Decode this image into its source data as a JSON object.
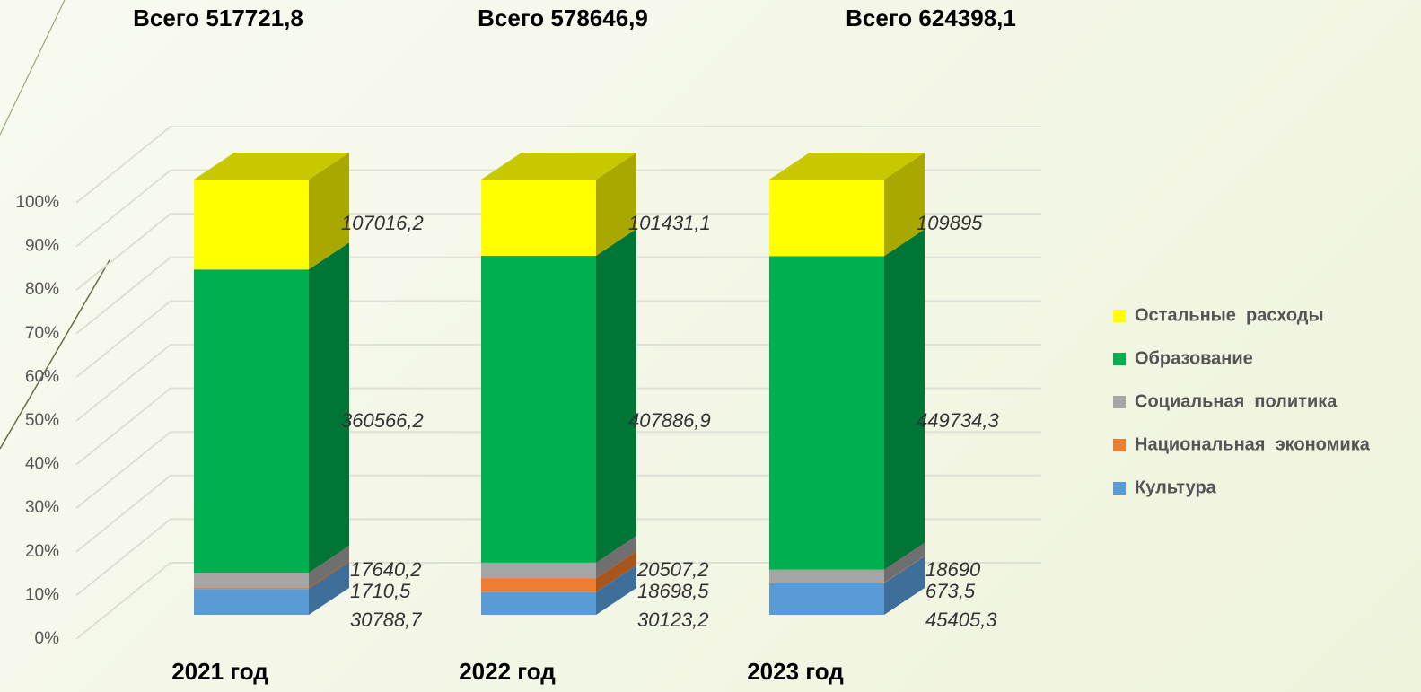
{
  "chart_data": {
    "type": "stacked_bar_100",
    "totals": [
      "Всего 517721,8",
      "Всего 578646,9",
      "Всего 624398,1"
    ],
    "categories": [
      "2021 год",
      "2022 год",
      "2023 год"
    ],
    "ylim": [
      0,
      100
    ],
    "yticks": [
      {
        "value": 0,
        "label": "0%"
      },
      {
        "value": 10,
        "label": "10%"
      },
      {
        "value": 20,
        "label": "20%"
      },
      {
        "value": 30,
        "label": "30%"
      },
      {
        "value": 40,
        "label": "40%"
      },
      {
        "value": 50,
        "label": "50%"
      },
      {
        "value": 60,
        "label": "60%"
      },
      {
        "value": 70,
        "label": "70%"
      },
      {
        "value": 80,
        "label": "80%"
      },
      {
        "value": 90,
        "label": "90%"
      },
      {
        "value": 100,
        "label": "100%"
      }
    ],
    "grid": true,
    "legend": "right",
    "series": [
      {
        "name": "Культура",
        "color": "#5b9bd5",
        "side": "#3e6f9a",
        "values": [
          30788.7,
          30123.2,
          45405.3
        ],
        "value_labels": [
          "30788,7",
          "30123,2",
          "45405,3"
        ]
      },
      {
        "name": "Национальная  экономика",
        "color": "#ed7d31",
        "side": "#a8561f",
        "values": [
          1710.5,
          18698.5,
          673.5
        ],
        "value_labels": [
          "1710,5",
          "18698,5",
          "673,5"
        ]
      },
      {
        "name": "Социальная  политика",
        "color": "#a5a5a5",
        "side": "#6f6f6f",
        "values": [
          17640.2,
          20507.2,
          18690
        ],
        "value_labels": [
          "17640,2",
          "20507,2",
          "18690"
        ]
      },
      {
        "name": "Образование",
        "color": "#00b050",
        "side": "#007535",
        "values": [
          360566.2,
          407886.9,
          449734.3
        ],
        "value_labels": [
          "360566,2",
          "407886,9",
          "449734,3"
        ]
      },
      {
        "name": "Остальные  расходы",
        "color": "#ffff00",
        "side": "#a8a800",
        "top": "#c8c800",
        "values": [
          107016.2,
          101431.1,
          109895
        ],
        "value_labels": [
          "107016,2",
          "101431,1",
          "109895"
        ]
      }
    ]
  }
}
